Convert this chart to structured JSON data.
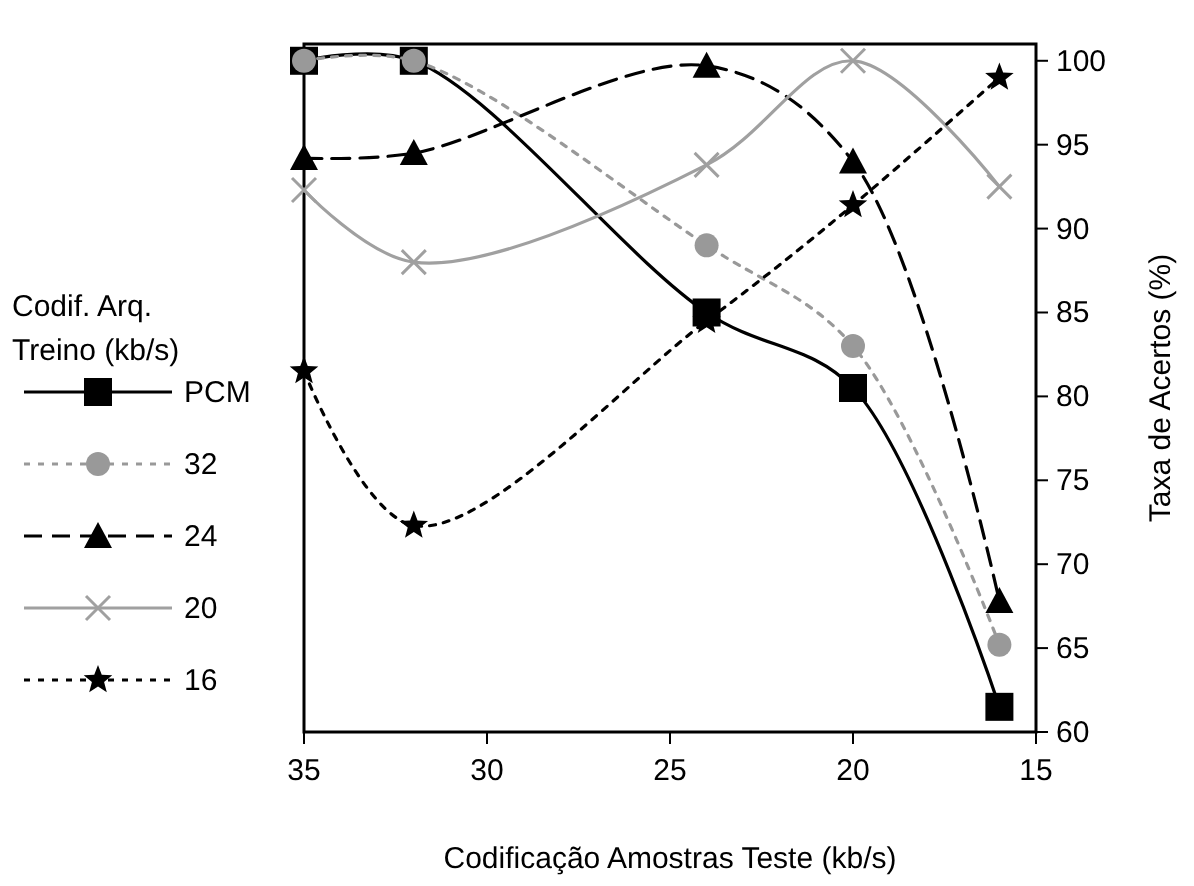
{
  "chart_data": {
    "type": "line",
    "xlabel": "Codificação Amostras Teste (kb/s)",
    "ylabel": "Taxa de Acertos (%)",
    "legend_title": "Codif. Arq. Treino (kb/s)",
    "legend": "left",
    "grid": false,
    "x": [
      35,
      32,
      24,
      20,
      16
    ],
    "xlim": [
      35,
      15
    ],
    "xticks": [
      35,
      30,
      25,
      20,
      15
    ],
    "ylim": [
      60,
      101
    ],
    "yticks": [
      60,
      65,
      70,
      75,
      80,
      85,
      90,
      95,
      100
    ],
    "series": [
      {
        "name": "PCM",
        "color": "#000000",
        "marker": "square",
        "line_style": "solid",
        "values": [
          100,
          100,
          85,
          80.5,
          61.5
        ]
      },
      {
        "name": "32",
        "color": "#999999",
        "marker": "circle",
        "line_style": "dotted",
        "values": [
          100,
          100,
          89,
          83,
          65.2
        ]
      },
      {
        "name": "24",
        "color": "#000000",
        "marker": "triangle",
        "line_style": "dashed",
        "values": [
          94.2,
          94.5,
          99.7,
          94,
          67.8
        ]
      },
      {
        "name": "20",
        "color": "#a0a0a0",
        "marker": "cross",
        "line_style": "solid",
        "values": [
          92.3,
          88,
          93.8,
          100,
          92.5
        ]
      },
      {
        "name": "16",
        "color": "#000000",
        "marker": "star",
        "line_style": "dotted",
        "values": [
          81.5,
          72.3,
          84.5,
          91.4,
          99
        ]
      }
    ]
  }
}
